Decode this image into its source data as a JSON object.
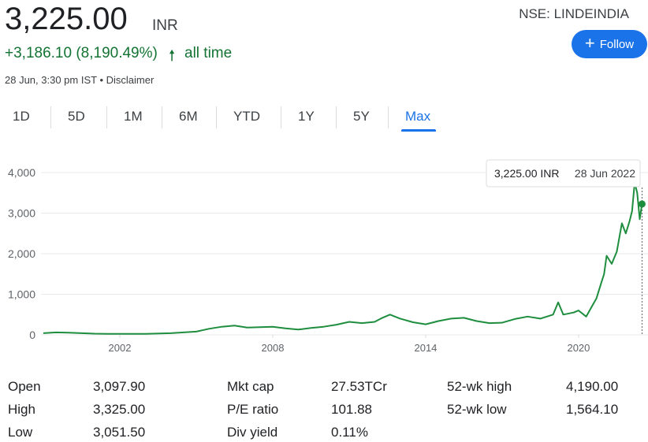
{
  "header": {
    "price": "3,225.00",
    "currency": "INR",
    "change": "+3,186.10 (8,190.49%)",
    "arrow": "🠕",
    "period": "all time",
    "timestamp": "28 Jun, 3:30 pm IST •",
    "disclaimer": "Disclaimer",
    "ticker": "NSE: LINDEINDIA",
    "follow": "Follow"
  },
  "tabs": {
    "labels": [
      "1D",
      "5D",
      "1M",
      "6M",
      "YTD",
      "1Y",
      "5Y",
      "Max"
    ],
    "selected": 7
  },
  "chart_data": {
    "type": "line",
    "color": "#1e8e3e",
    "x": [
      1999.0,
      1999.5,
      2000.0,
      2000.5,
      2001.0,
      2001.5,
      2002.0,
      2003.0,
      2004.0,
      2005.0,
      2005.5,
      2006.0,
      2006.5,
      2007.0,
      2007.5,
      2008.0,
      2008.5,
      2009.0,
      2009.5,
      2010.0,
      2010.5,
      2011.0,
      2011.5,
      2012.0,
      2012.3,
      2012.6,
      2013.0,
      2013.5,
      2014.0,
      2014.5,
      2015.0,
      2015.5,
      2016.0,
      2016.5,
      2017.0,
      2017.5,
      2018.0,
      2018.5,
      2019.0,
      2019.2,
      2019.4,
      2019.8,
      2020.0,
      2020.3,
      2020.7,
      2020.9,
      2021.0,
      2021.1,
      2021.3,
      2021.5,
      2021.7,
      2021.85,
      2022.0,
      2022.1,
      2022.2,
      2022.3,
      2022.4,
      2022.49
    ],
    "values": [
      40,
      60,
      55,
      40,
      30,
      25,
      25,
      25,
      40,
      80,
      150,
      200,
      230,
      180,
      190,
      200,
      160,
      130,
      170,
      200,
      250,
      320,
      290,
      320,
      420,
      500,
      400,
      310,
      260,
      340,
      400,
      420,
      340,
      290,
      300,
      390,
      450,
      400,
      500,
      800,
      500,
      550,
      600,
      450,
      900,
      1300,
      1500,
      1950,
      1750,
      2050,
      2750,
      2500,
      2800,
      3050,
      3750,
      3500,
      2850,
      3225
    ],
    "xlim": [
      1999.0,
      2022.6
    ],
    "ylim": [
      0,
      4000
    ],
    "xticks": [
      2002,
      2008,
      2014,
      2020
    ],
    "yticks": [
      0,
      {
        "value": 1000,
        "label": "1,000"
      },
      {
        "value": 2000,
        "label": "2,000"
      },
      {
        "value": 3000,
        "label": "3,000"
      },
      {
        "value": 4000,
        "label": "4,000"
      }
    ],
    "grid": true,
    "tooltip": {
      "price": "3,225.00 INR",
      "date": "28 Jun 2022"
    }
  },
  "stats": [
    [
      [
        "Open",
        "3,097.90"
      ],
      [
        "Mkt cap",
        "27.53TCr"
      ],
      [
        "52-wk high",
        "4,190.00"
      ]
    ],
    [
      [
        "High",
        "3,325.00"
      ],
      [
        "P/E ratio",
        "101.88"
      ],
      [
        "52-wk low",
        "1,564.10"
      ]
    ],
    [
      [
        "Low",
        "3,051.50"
      ],
      [
        "Div yield",
        "0.11%"
      ]
    ]
  ]
}
